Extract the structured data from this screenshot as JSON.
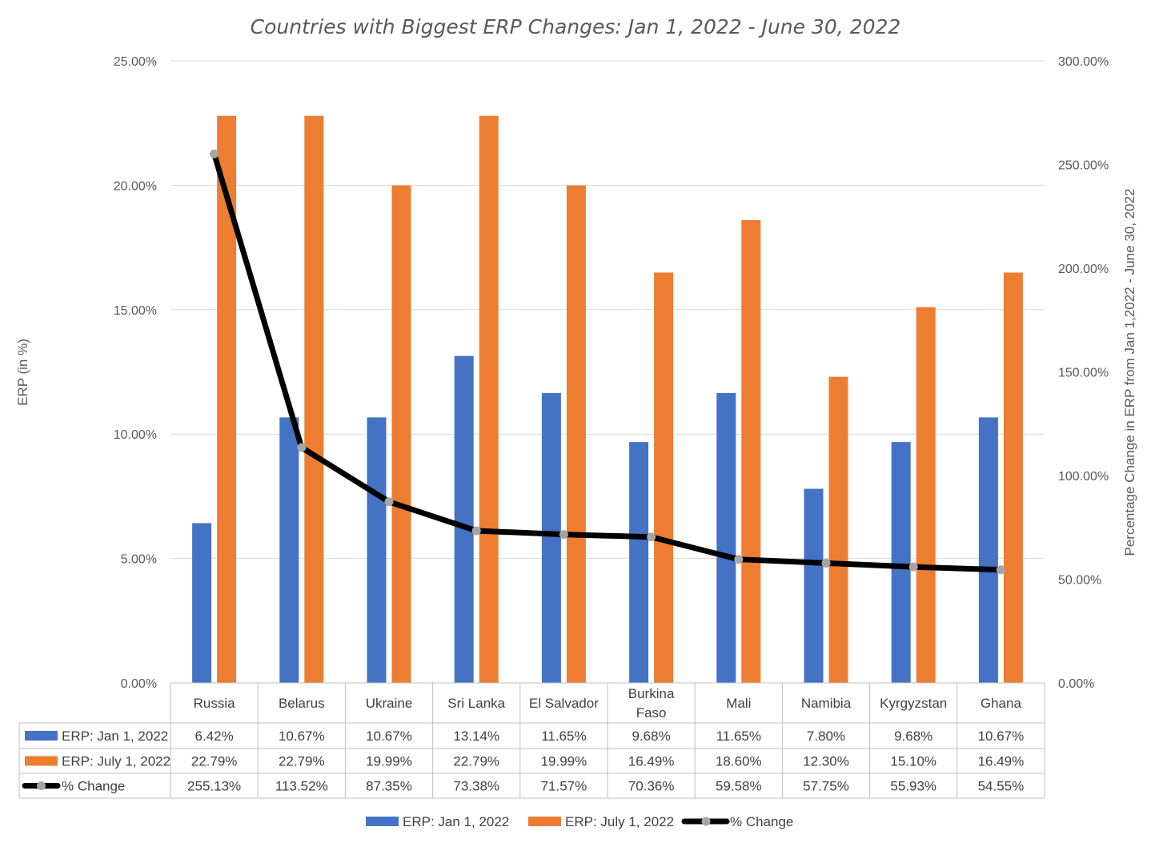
{
  "chart_data": {
    "type": "bar",
    "title": "Countries with Biggest ERP Changes: Jan 1, 2022 - June 30, 2022",
    "ylabel": "ERP (in %)",
    "y2label": "Percentage Change in ERP from Jan 1,2022 - June 30, 2022",
    "ylim": [
      0,
      25
    ],
    "y2lim": [
      0,
      300
    ],
    "yticks": [
      "0.00%",
      "5.00%",
      "10.00%",
      "15.00%",
      "20.00%",
      "25.00%"
    ],
    "y2ticks": [
      "0.00%",
      "50.00%",
      "100.00%",
      "150.00%",
      "200.00%",
      "250.00%",
      "300.00%"
    ],
    "categories": [
      "Russia",
      "Belarus",
      "Ukraine",
      "Sri Lanka",
      "El Salvador",
      "Burkina Faso",
      "Mali",
      "Namibia",
      "Kyrgyzstan",
      "Ghana"
    ],
    "grid": true,
    "legend_position": "bottom",
    "series": [
      {
        "name": "ERP: Jan 1, 2022",
        "type": "bar",
        "axis": "left",
        "color": "#4472c4",
        "values": [
          6.42,
          10.67,
          10.67,
          13.14,
          11.65,
          9.68,
          11.65,
          7.8,
          9.68,
          10.67
        ],
        "labels": [
          "6.42%",
          "10.67%",
          "10.67%",
          "13.14%",
          "11.65%",
          "9.68%",
          "11.65%",
          "7.80%",
          "9.68%",
          "10.67%"
        ]
      },
      {
        "name": "ERP: July 1, 2022",
        "type": "bar",
        "axis": "left",
        "color": "#ed7d31",
        "values": [
          22.79,
          22.79,
          19.99,
          22.79,
          19.99,
          16.49,
          18.6,
          12.3,
          15.1,
          16.49
        ],
        "labels": [
          "22.79%",
          "22.79%",
          "19.99%",
          "22.79%",
          "19.99%",
          "16.49%",
          "18.60%",
          "12.30%",
          "15.10%",
          "16.49%"
        ]
      },
      {
        "name": "% Change",
        "type": "line",
        "axis": "right",
        "color": "#000000",
        "marker_color": "#a5a5a5",
        "values": [
          255.13,
          113.52,
          87.35,
          73.38,
          71.57,
          70.36,
          59.58,
          57.75,
          55.93,
          54.55
        ],
        "labels": [
          "255.13%",
          "113.52%",
          "87.35%",
          "73.38%",
          "71.57%",
          "70.36%",
          "59.58%",
          "57.75%",
          "55.93%",
          "54.55%"
        ]
      }
    ]
  }
}
